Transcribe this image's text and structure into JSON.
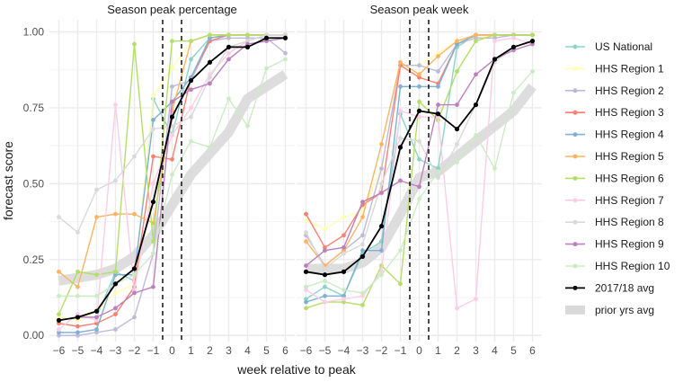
{
  "chart_data": {
    "type": "line",
    "ylabel": "forecast score",
    "xlabel": "week relative to peak",
    "ylim": [
      -0.02,
      1.04
    ],
    "xlim": [
      -6.5,
      6.5
    ],
    "yticks": [
      0.0,
      0.25,
      0.5,
      0.75,
      1.0
    ],
    "ytick_labels": [
      "0.00",
      "0.25",
      "0.50",
      "0.75",
      "1.00"
    ],
    "xticks": [
      -6,
      -5,
      -4,
      -3,
      -2,
      -1,
      0,
      1,
      2,
      3,
      4,
      5,
      6
    ],
    "xtick_labels": [
      "−6",
      "−5",
      "−4",
      "−3",
      "−2",
      "−1",
      "0",
      "1",
      "2",
      "3",
      "4",
      "5",
      "6"
    ],
    "vlines": [
      -0.5,
      0.5
    ],
    "grid": true,
    "legend_position": "right",
    "x": [
      -6,
      -5,
      -4,
      -3,
      -2,
      -1,
      0,
      1,
      2,
      3,
      4,
      5,
      6
    ],
    "legend": [
      {
        "name": "US National",
        "color": "#8dd3c7",
        "kind": "line"
      },
      {
        "name": "HHS Region 1",
        "color": "#ffffb3",
        "kind": "line"
      },
      {
        "name": "HHS Region 2",
        "color": "#bebada",
        "kind": "line"
      },
      {
        "name": "HHS Region 3",
        "color": "#fb8072",
        "kind": "line"
      },
      {
        "name": "HHS Region 4",
        "color": "#80b1d3",
        "kind": "line"
      },
      {
        "name": "HHS Region 5",
        "color": "#fdb462",
        "kind": "line"
      },
      {
        "name": "HHS Region 6",
        "color": "#b3de69",
        "kind": "line"
      },
      {
        "name": "HHS Region 7",
        "color": "#fccde5",
        "kind": "line"
      },
      {
        "name": "HHS Region 8",
        "color": "#d9d9d9",
        "kind": "line"
      },
      {
        "name": "HHS Region 9",
        "color": "#bc80bd",
        "kind": "line"
      },
      {
        "name": "HHS Region 10",
        "color": "#ccebc5",
        "kind": "line"
      },
      {
        "name": "2017/18 avg",
        "color": "#000000",
        "kind": "line"
      },
      {
        "name": "prior yrs avg",
        "color": "#d9d9d9",
        "kind": "band"
      }
    ],
    "panels": [
      {
        "title": "Season peak percentage",
        "series": [
          {
            "name": "US National",
            "values": [
              0.05,
              0.06,
              0.06,
              0.21,
              0.18,
              0.78,
              0.66,
              0.91,
              0.98,
              0.99,
              0.99,
              0.99,
              0.99
            ]
          },
          {
            "name": "HHS Region 1",
            "values": [
              0.06,
              0.05,
              0.08,
              0.14,
              0.17,
              0.79,
              0.88,
              0.97,
              0.99,
              0.99,
              0.99,
              0.99,
              0.99
            ]
          },
          {
            "name": "HHS Region 2",
            "values": [
              0.0,
              0.0,
              0.01,
              0.02,
              0.06,
              0.27,
              0.82,
              0.84,
              0.97,
              0.98,
              0.98,
              0.98,
              0.93
            ]
          },
          {
            "name": "HHS Region 3",
            "values": [
              0.04,
              0.03,
              0.04,
              0.07,
              0.16,
              0.59,
              0.58,
              0.85,
              0.97,
              0.99,
              0.99,
              0.99,
              0.99
            ]
          },
          {
            "name": "HHS Region 4",
            "values": [
              0.01,
              0.01,
              0.02,
              0.2,
              0.2,
              0.71,
              0.77,
              0.85,
              0.98,
              0.99,
              0.99,
              0.99,
              0.99
            ]
          },
          {
            "name": "HHS Region 5",
            "values": [
              0.21,
              0.16,
              0.39,
              0.4,
              0.4,
              0.37,
              0.74,
              0.97,
              0.99,
              0.99,
              0.99,
              0.99,
              0.99
            ]
          },
          {
            "name": "HHS Region 6",
            "values": [
              0.07,
              0.21,
              0.2,
              0.21,
              0.96,
              0.31,
              0.97,
              0.97,
              0.99,
              0.99,
              0.99,
              0.99,
              0.99
            ]
          },
          {
            "name": "HHS Region 7",
            "values": [
              0.02,
              0.07,
              0.05,
              0.76,
              0.15,
              0.5,
              0.66,
              0.75,
              0.86,
              0.93,
              0.97,
              0.99,
              0.99
            ]
          },
          {
            "name": "HHS Region 8",
            "values": [
              0.39,
              0.34,
              0.48,
              0.51,
              0.59,
              0.68,
              0.69,
              0.72,
              0.85,
              0.95,
              0.97,
              0.99,
              0.99
            ]
          },
          {
            "name": "HHS Region 9",
            "values": [
              0.05,
              0.06,
              0.06,
              0.09,
              0.14,
              0.16,
              0.77,
              0.81,
              0.83,
              0.91,
              0.96,
              0.97,
              0.98
            ]
          },
          {
            "name": "HHS Region 10",
            "values": [
              0.13,
              0.13,
              0.13,
              0.17,
              0.2,
              0.27,
              0.53,
              0.64,
              0.62,
              0.78,
              0.69,
              0.88,
              0.91
            ]
          },
          {
            "name": "2017/18 avg",
            "values": [
              0.05,
              0.06,
              0.08,
              0.17,
              0.22,
              0.44,
              0.72,
              0.84,
              0.9,
              0.95,
              0.95,
              0.98,
              0.98
            ]
          }
        ],
        "prior_avg": [
          0.18,
          0.19,
          0.2,
          0.22,
          0.26,
          0.33,
          0.43,
          0.53,
          0.6,
          0.67,
          0.78,
          0.82,
          0.86
        ]
      },
      {
        "title": "Season peak week",
        "series": [
          {
            "name": "US National",
            "values": [
              0.12,
              0.16,
              0.13,
              0.27,
              0.31,
              0.73,
              0.58,
              0.55,
              0.95,
              0.99,
              0.99,
              0.99,
              0.99
            ]
          },
          {
            "name": "HHS Region 1",
            "values": [
              0.38,
              0.35,
              0.39,
              0.41,
              0.55,
              0.89,
              0.89,
              0.93,
              0.97,
              0.98,
              0.99,
              0.99,
              0.99
            ]
          },
          {
            "name": "HHS Region 2",
            "values": [
              0.33,
              0.23,
              0.28,
              0.33,
              0.55,
              0.89,
              0.89,
              0.87,
              0.96,
              0.98,
              0.98,
              0.99,
              0.99
            ]
          },
          {
            "name": "HHS Region 3",
            "values": [
              0.4,
              0.29,
              0.33,
              0.43,
              0.47,
              0.89,
              0.85,
              0.83,
              0.96,
              0.99,
              0.99,
              0.99,
              0.99
            ]
          },
          {
            "name": "HHS Region 4",
            "values": [
              0.11,
              0.13,
              0.13,
              0.28,
              0.28,
              0.82,
              0.82,
              0.82,
              0.96,
              0.99,
              0.99,
              0.99,
              0.99
            ]
          },
          {
            "name": "HHS Region 5",
            "values": [
              0.31,
              0.23,
              0.28,
              0.39,
              0.63,
              0.9,
              0.86,
              0.92,
              0.97,
              0.99,
              0.99,
              0.99,
              0.99
            ]
          },
          {
            "name": "HHS Region 6",
            "values": [
              0.09,
              0.11,
              0.11,
              0.1,
              0.23,
              0.17,
              0.77,
              0.71,
              0.87,
              0.97,
              0.99,
              0.99,
              0.99
            ]
          },
          {
            "name": "HHS Region 7",
            "values": [
              0.15,
              0.11,
              0.12,
              0.13,
              0.21,
              0.74,
              0.72,
              0.72,
              0.09,
              0.12,
              0.97,
              0.98,
              0.96
            ]
          },
          {
            "name": "HHS Region 8",
            "values": [
              0.34,
              0.22,
              0.27,
              0.3,
              0.5,
              0.65,
              0.64,
              0.52,
              0.63,
              0.76,
              0.9,
              0.95,
              0.97
            ]
          },
          {
            "name": "HHS Region 9",
            "values": [
              0.23,
              0.28,
              0.29,
              0.44,
              0.47,
              0.51,
              0.49,
              0.76,
              0.76,
              0.86,
              0.91,
              0.94,
              0.96
            ]
          },
          {
            "name": "HHS Region 10",
            "values": [
              0.16,
              0.18,
              0.15,
              0.14,
              0.2,
              0.28,
              0.45,
              0.54,
              0.57,
              0.66,
              0.55,
              0.8,
              0.87
            ]
          },
          {
            "name": "2017/18 avg",
            "values": [
              0.21,
              0.2,
              0.21,
              0.26,
              0.36,
              0.62,
              0.74,
              0.73,
              0.68,
              0.76,
              0.91,
              0.95,
              0.97
            ]
          }
        ],
        "prior_avg": [
          0.22,
          0.22,
          0.22,
          0.24,
          0.29,
          0.4,
          0.52,
          0.54,
          0.59,
          0.64,
          0.69,
          0.74,
          0.82
        ]
      }
    ]
  }
}
